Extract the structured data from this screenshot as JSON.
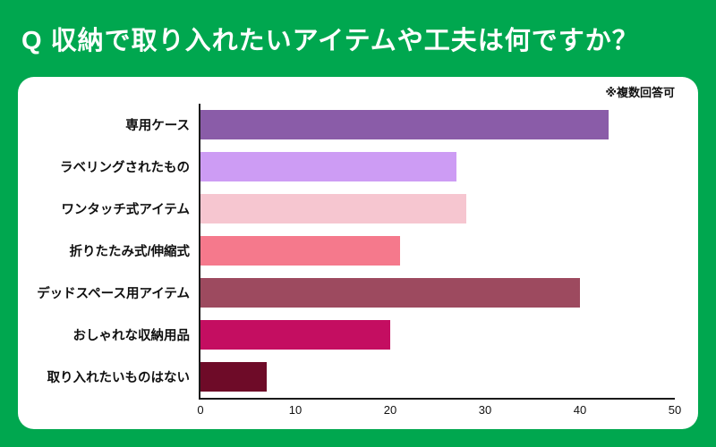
{
  "header": {
    "title": "Q 収納で取り入れたいアイテムや工夫は何ですか？"
  },
  "note": "※複数回答可",
  "colors": {
    "background": "#00A74F",
    "card": "#FFFFFF",
    "axis": "#1A1A1A",
    "title_text": "#FFFFFF"
  },
  "chart_data": {
    "type": "bar",
    "orientation": "horizontal",
    "title": "Q 収納で取り入れたいアイテムや工夫は何ですか？",
    "annotation": "※複数回答可",
    "categories": [
      "専用ケース",
      "ラベリングされたもの",
      "ワンタッチ式アイテム",
      "折りたたみ式/伸縮式",
      "デッドスペース用アイテム",
      "おしゃれな収納用品",
      "取り入れたいものはない"
    ],
    "values": [
      43,
      27,
      28,
      21,
      40,
      20,
      7
    ],
    "bar_colors": [
      "#8A5CA8",
      "#CD9CF4",
      "#F6C6D0",
      "#F5798C",
      "#9D4A5F",
      "#C40E61",
      "#6E0B28"
    ],
    "xlabel": "",
    "ylabel": "",
    "xlim": [
      0,
      50
    ],
    "x_ticks": [
      0,
      10,
      20,
      30,
      40,
      50
    ],
    "grid": false,
    "legend": false
  }
}
